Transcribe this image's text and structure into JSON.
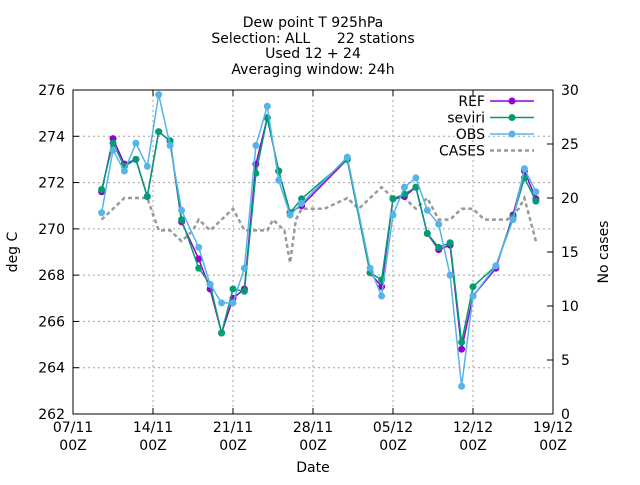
{
  "chart_data": {
    "type": "line",
    "title_lines": [
      "Dew point T 925hPa",
      "Selection: ALL      22 stations",
      "Used 12 + 24",
      "Averaging window: 24h"
    ],
    "xlabel": "Date",
    "ylabel": "deg C",
    "y2label": "No cases",
    "xlim": [
      "07/11 00Z",
      "19/12 00Z"
    ],
    "ylim": [
      262,
      276
    ],
    "y2lim": [
      0,
      30
    ],
    "x_ticks": [
      {
        "label_top": "07/11",
        "label_bottom": "00Z",
        "day": 0
      },
      {
        "label_top": "14/11",
        "label_bottom": "00Z",
        "day": 7
      },
      {
        "label_top": "21/11",
        "label_bottom": "00Z",
        "day": 14
      },
      {
        "label_top": "28/11",
        "label_bottom": "00Z",
        "day": 21
      },
      {
        "label_top": "05/12",
        "label_bottom": "00Z",
        "day": 28
      },
      {
        "label_top": "12/12",
        "label_bottom": "00Z",
        "day": 35
      },
      {
        "label_top": "19/12",
        "label_bottom": "00Z",
        "day": 42
      }
    ],
    "y_ticks": [
      262,
      264,
      266,
      268,
      270,
      272,
      274,
      276
    ],
    "y2_ticks": [
      0,
      5,
      10,
      15,
      20,
      25,
      30
    ],
    "grid": true,
    "legend_position": "top-right",
    "series": [
      {
        "name": "REF",
        "color": "#9400d3",
        "axis": "left",
        "points": [
          [
            2.5,
            271.6
          ],
          [
            3.5,
            273.9
          ],
          [
            4.5,
            272.8
          ],
          [
            5.5,
            273.0
          ],
          [
            6.5,
            271.4
          ],
          [
            7.5,
            274.2
          ],
          [
            8.5,
            273.8
          ],
          [
            9.5,
            270.3
          ],
          [
            11.0,
            268.7
          ],
          [
            12.0,
            267.4
          ],
          [
            13.0,
            265.5
          ],
          [
            14.0,
            267.0
          ],
          [
            15.0,
            267.4
          ],
          [
            16.0,
            272.8
          ],
          [
            17.0,
            274.8
          ],
          [
            18.0,
            272.5
          ],
          [
            19.0,
            270.7
          ],
          [
            20.0,
            271.0
          ],
          [
            24.0,
            273.0
          ],
          [
            26.0,
            268.1
          ],
          [
            27.0,
            267.5
          ],
          [
            28.0,
            271.3
          ],
          [
            29.0,
            271.4
          ],
          [
            30.0,
            271.8
          ],
          [
            31.0,
            269.8
          ],
          [
            32.0,
            269.1
          ],
          [
            33.0,
            269.3
          ],
          [
            34.0,
            264.8
          ],
          [
            35.0,
            267.1
          ],
          [
            37.0,
            268.3
          ],
          [
            38.5,
            270.6
          ],
          [
            39.5,
            272.5
          ],
          [
            40.5,
            271.3
          ]
        ]
      },
      {
        "name": "seviri",
        "color": "#009e73",
        "axis": "left",
        "points": [
          [
            2.5,
            271.7
          ],
          [
            3.5,
            273.7
          ],
          [
            4.5,
            272.7
          ],
          [
            5.5,
            273.0
          ],
          [
            6.5,
            271.4
          ],
          [
            7.5,
            274.2
          ],
          [
            8.5,
            273.8
          ],
          [
            9.5,
            270.4
          ],
          [
            11.0,
            268.3
          ],
          [
            12.0,
            267.6
          ],
          [
            13.0,
            265.5
          ],
          [
            14.0,
            267.4
          ],
          [
            15.0,
            267.3
          ],
          [
            16.0,
            272.4
          ],
          [
            17.0,
            274.8
          ],
          [
            18.0,
            272.5
          ],
          [
            19.0,
            270.7
          ],
          [
            20.0,
            271.3
          ],
          [
            24.0,
            273.0
          ],
          [
            26.0,
            268.1
          ],
          [
            27.0,
            267.8
          ],
          [
            28.0,
            271.3
          ],
          [
            29.0,
            271.5
          ],
          [
            30.0,
            271.8
          ],
          [
            31.0,
            269.8
          ],
          [
            32.0,
            269.2
          ],
          [
            33.0,
            269.4
          ],
          [
            34.0,
            265.1
          ],
          [
            35.0,
            267.5
          ],
          [
            37.0,
            268.4
          ],
          [
            38.5,
            270.5
          ],
          [
            39.5,
            272.2
          ],
          [
            40.5,
            271.2
          ]
        ]
      },
      {
        "name": "OBS",
        "color": "#56b4e9",
        "axis": "left",
        "points": [
          [
            2.5,
            270.7
          ],
          [
            3.5,
            273.4
          ],
          [
            4.5,
            272.5
          ],
          [
            5.5,
            273.7
          ],
          [
            6.5,
            272.7
          ],
          [
            7.5,
            275.8
          ],
          [
            8.5,
            273.6
          ],
          [
            9.5,
            270.8
          ],
          [
            11.0,
            269.2
          ],
          [
            12.0,
            267.6
          ],
          [
            13.0,
            266.8
          ],
          [
            14.0,
            266.8
          ],
          [
            15.0,
            268.3
          ],
          [
            16.0,
            273.6
          ],
          [
            17.0,
            275.3
          ],
          [
            18.0,
            272.1
          ],
          [
            19.0,
            270.6
          ],
          [
            20.0,
            271.1
          ],
          [
            24.0,
            273.1
          ],
          [
            26.0,
            268.3
          ],
          [
            27.0,
            267.1
          ],
          [
            28.0,
            270.6
          ],
          [
            29.0,
            271.8
          ],
          [
            30.0,
            272.2
          ],
          [
            31.0,
            270.8
          ],
          [
            32.0,
            270.2
          ],
          [
            33.0,
            268.0
          ],
          [
            34.0,
            263.2
          ],
          [
            35.0,
            267.1
          ],
          [
            37.0,
            268.4
          ],
          [
            38.5,
            270.4
          ],
          [
            39.5,
            272.6
          ],
          [
            40.5,
            271.6
          ]
        ]
      },
      {
        "name": "CASES",
        "color": "#999999",
        "axis": "right",
        "dashed": true,
        "points": [
          [
            2.5,
            18.0
          ],
          [
            3.5,
            19.0
          ],
          [
            4.5,
            20.0
          ],
          [
            5.5,
            20.0
          ],
          [
            6.5,
            20.0
          ],
          [
            7.5,
            17.0
          ],
          [
            8.5,
            17.0
          ],
          [
            9.5,
            16.0
          ],
          [
            10.5,
            17.0
          ],
          [
            11.0,
            18.0
          ],
          [
            12.0,
            17.0
          ],
          [
            13.0,
            18.0
          ],
          [
            14.0,
            19.0
          ],
          [
            15.0,
            17.0
          ],
          [
            16.0,
            17.0
          ],
          [
            17.0,
            17.0
          ],
          [
            17.5,
            18.0
          ],
          [
            18.5,
            17.0
          ],
          [
            19.0,
            14.0
          ],
          [
            19.5,
            18.0
          ],
          [
            20.0,
            19.0
          ],
          [
            22.0,
            19.0
          ],
          [
            24.0,
            20.0
          ],
          [
            25.0,
            19.0
          ],
          [
            26.0,
            20.0
          ],
          [
            27.0,
            21.0
          ],
          [
            28.0,
            20.0
          ],
          [
            29.0,
            20.0
          ],
          [
            30.0,
            19.0
          ],
          [
            31.0,
            20.0
          ],
          [
            32.0,
            18.0
          ],
          [
            33.0,
            18.0
          ],
          [
            34.0,
            19.0
          ],
          [
            35.0,
            19.0
          ],
          [
            36.0,
            18.0
          ],
          [
            37.0,
            18.0
          ],
          [
            38.0,
            18.0
          ],
          [
            39.0,
            19.0
          ],
          [
            39.5,
            20.0
          ],
          [
            40.5,
            16.0
          ]
        ]
      }
    ]
  }
}
